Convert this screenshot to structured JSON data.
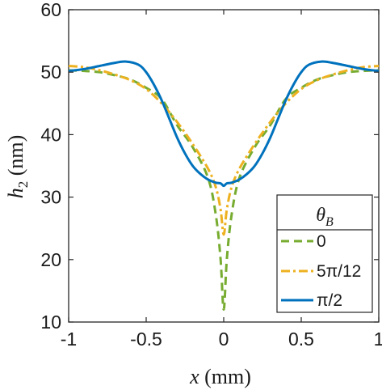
{
  "chart_data": {
    "type": "line",
    "xlabel": "x (mm)",
    "ylabel": "h2 (nm)",
    "xlim": [
      -1,
      1
    ],
    "ylim": [
      10,
      60
    ],
    "xticks": [
      -1,
      -0.5,
      0,
      0.5,
      1
    ],
    "xtick_labels": [
      "-1",
      "-0.5",
      "0",
      "0.5",
      "1"
    ],
    "yticks": [
      10,
      20,
      30,
      40,
      50,
      60
    ],
    "ytick_labels": [
      "10",
      "20",
      "30",
      "40",
      "50",
      "60"
    ],
    "grid": false,
    "legend": {
      "title": "θB",
      "placement": "bottom-right",
      "entries": [
        "0",
        "5π/12",
        "π/2"
      ]
    },
    "series": [
      {
        "name": "0",
        "color": "#77AC30",
        "style": "dashed",
        "x": [
          -1,
          -0.9,
          -0.8,
          -0.7,
          -0.6,
          -0.5,
          -0.4,
          -0.3,
          -0.2,
          -0.1,
          -0.05,
          -0.02,
          0,
          0.02,
          0.05,
          0.1,
          0.2,
          0.3,
          0.4,
          0.5,
          0.6,
          0.7,
          0.8,
          0.9,
          1
        ],
        "y": [
          50.3,
          50.2,
          50.0,
          49.5,
          48.8,
          47.5,
          45.7,
          41.5,
          38.0,
          33.0,
          27.0,
          20.0,
          12.0,
          20.0,
          27.0,
          33.0,
          38.0,
          41.5,
          45.7,
          47.5,
          48.8,
          49.5,
          50.0,
          50.2,
          50.3
        ]
      },
      {
        "name": "5π/12",
        "color": "#EDB120",
        "style": "dashdot",
        "x": [
          -1,
          -0.9,
          -0.8,
          -0.7,
          -0.6,
          -0.5,
          -0.4,
          -0.3,
          -0.2,
          -0.1,
          -0.05,
          -0.02,
          0,
          0.02,
          0.05,
          0.1,
          0.2,
          0.3,
          0.4,
          0.5,
          0.6,
          0.7,
          0.8,
          0.9,
          1
        ],
        "y": [
          51.0,
          50.8,
          50.3,
          49.6,
          48.7,
          47.3,
          45.0,
          42.0,
          38.5,
          34.5,
          31.5,
          28.0,
          24.0,
          28.0,
          31.5,
          34.5,
          38.5,
          42.0,
          45.0,
          47.3,
          48.7,
          49.6,
          50.3,
          50.8,
          51.0
        ]
      },
      {
        "name": "π/2",
        "color": "#0072BD",
        "style": "solid",
        "x": [
          -1,
          -0.9,
          -0.8,
          -0.7,
          -0.63,
          -0.55,
          -0.5,
          -0.45,
          -0.4,
          -0.35,
          -0.3,
          -0.25,
          -0.2,
          -0.15,
          -0.1,
          -0.05,
          -0.02,
          0,
          0.02,
          0.05,
          0.1,
          0.15,
          0.2,
          0.25,
          0.3,
          0.35,
          0.4,
          0.45,
          0.5,
          0.55,
          0.63,
          0.7,
          0.8,
          0.9,
          1
        ],
        "y": [
          50.2,
          50.5,
          51.0,
          51.5,
          51.7,
          51.2,
          50.0,
          48.0,
          45.5,
          42.5,
          39.5,
          37.0,
          35.0,
          33.7,
          32.8,
          32.3,
          32.2,
          31.8,
          32.2,
          32.3,
          32.8,
          33.7,
          35.0,
          37.0,
          39.5,
          42.5,
          45.5,
          48.0,
          50.0,
          51.2,
          51.7,
          51.5,
          51.0,
          50.5,
          50.2
        ]
      }
    ]
  }
}
